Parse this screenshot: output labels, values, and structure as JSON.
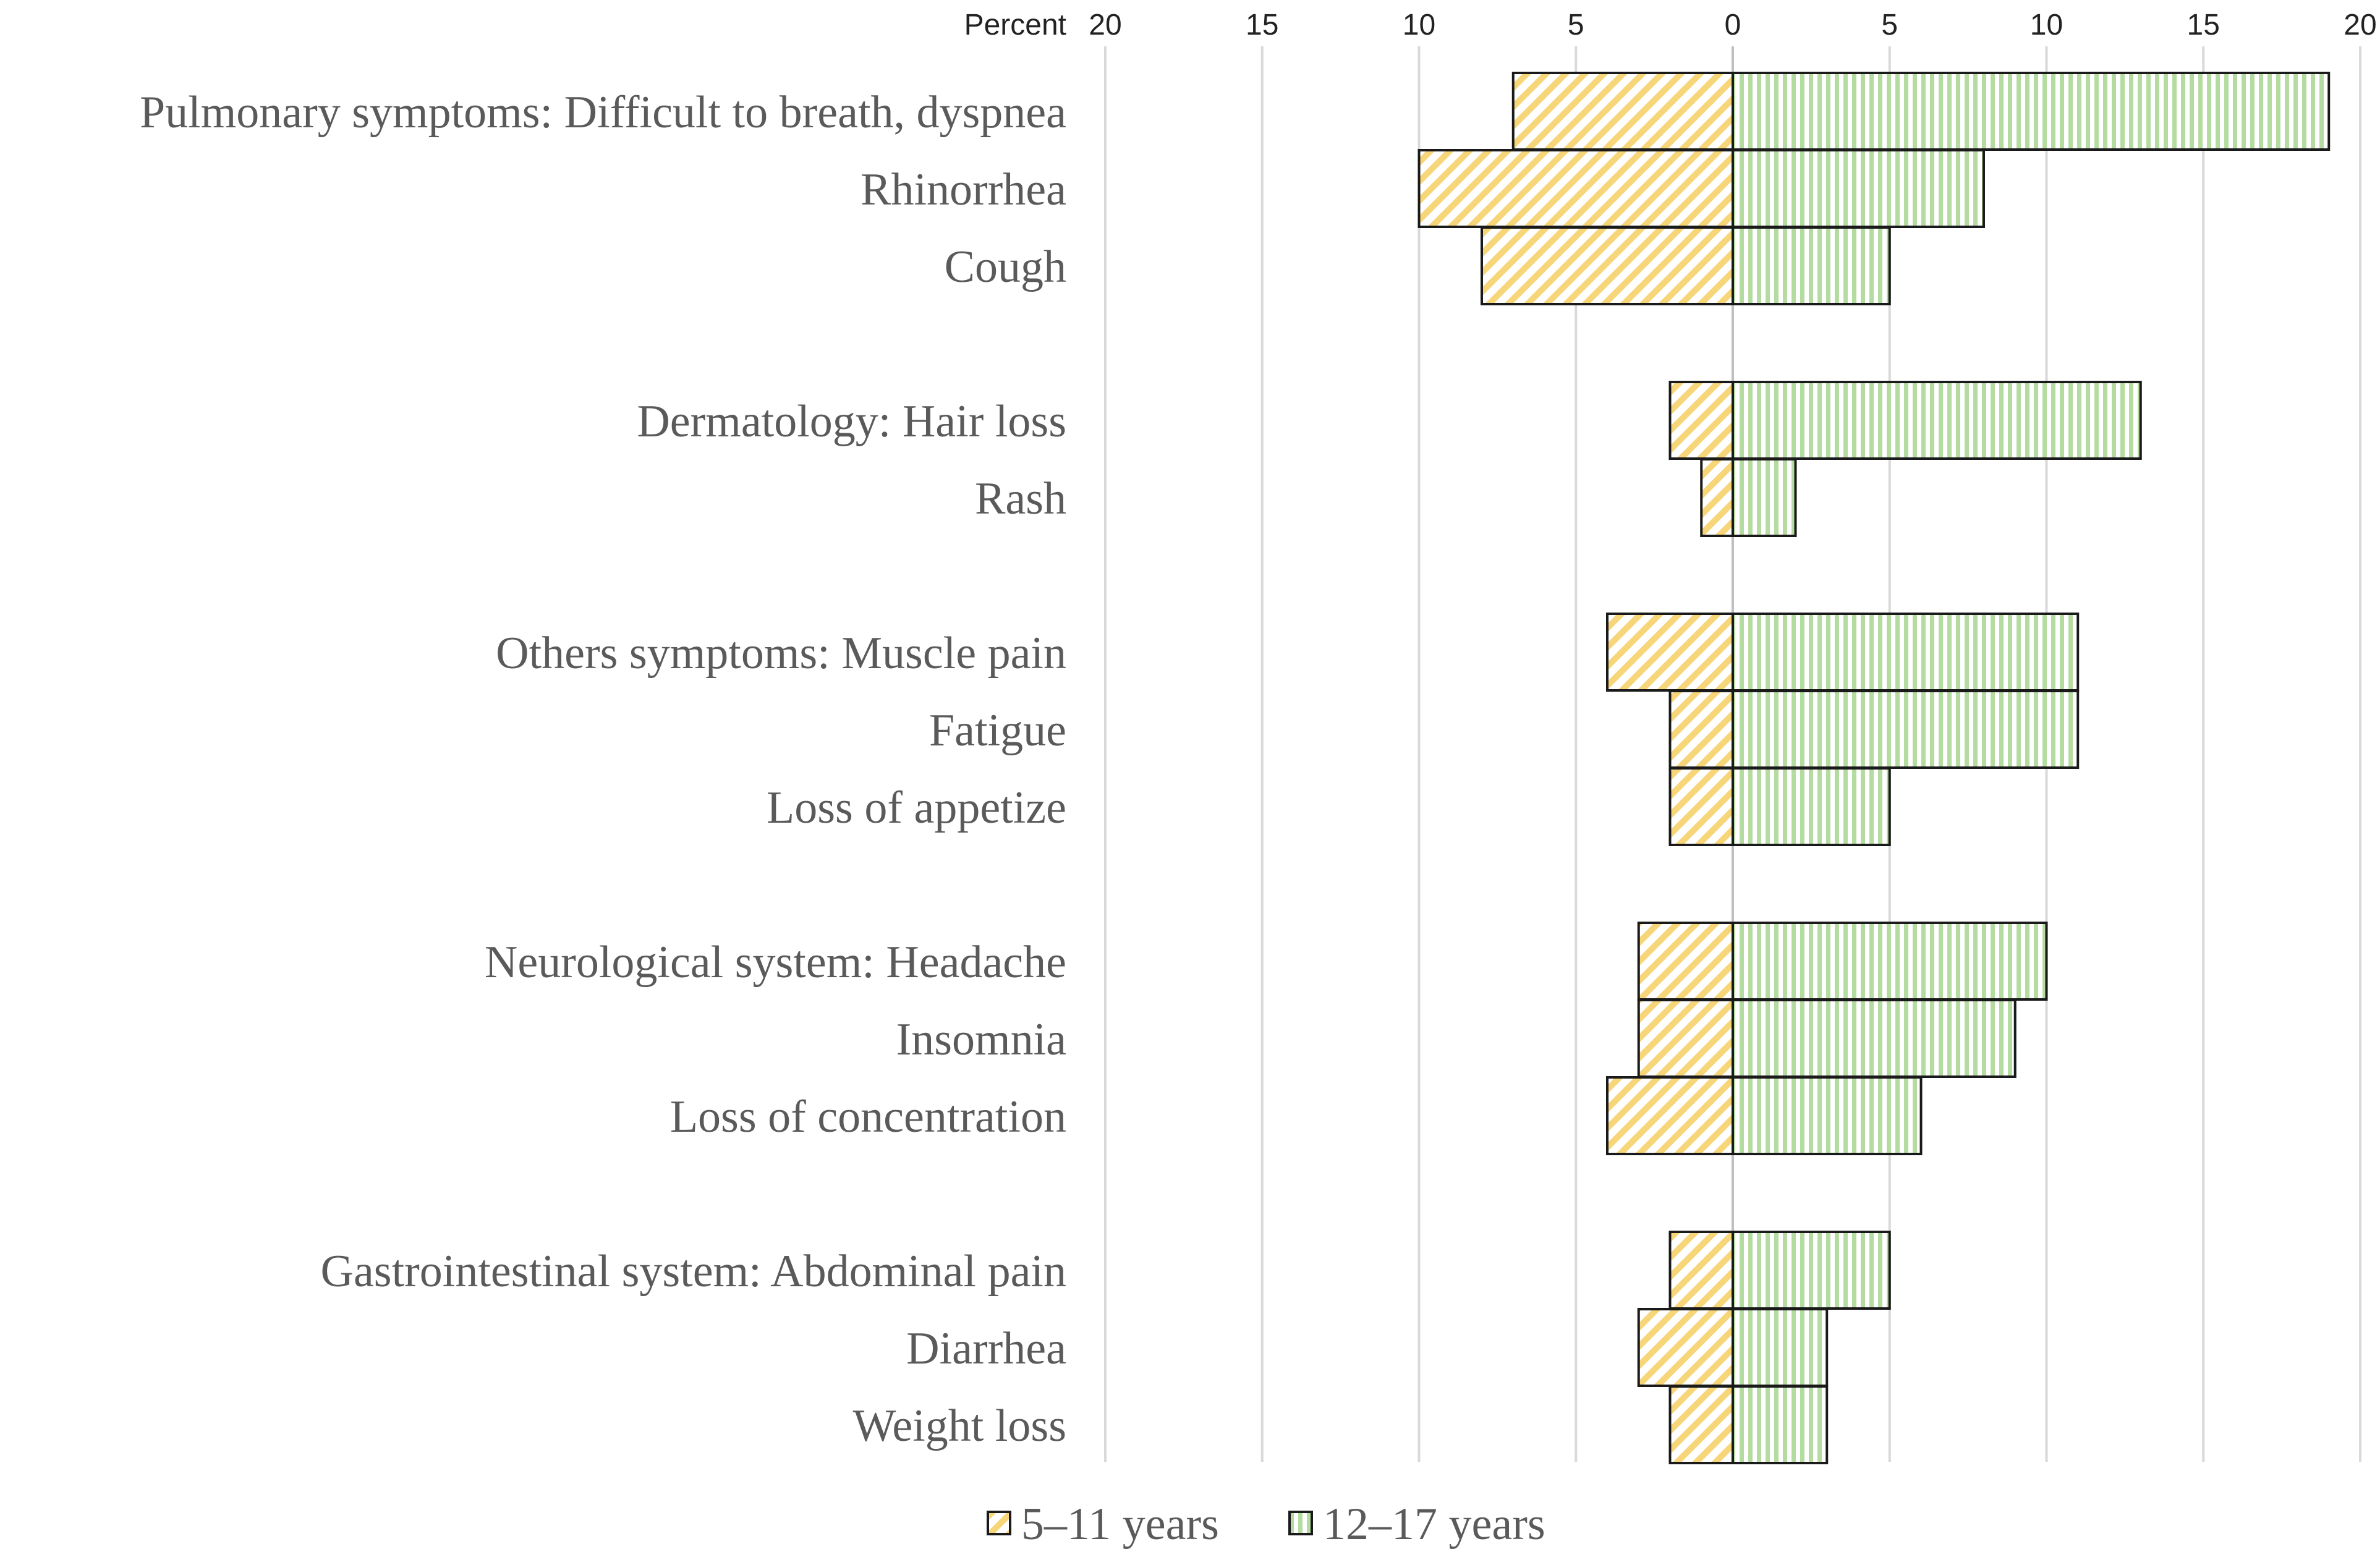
{
  "chart_data": {
    "type": "bar",
    "orientation": "horizontal",
    "layout": "diverging",
    "axis_title": "Percent",
    "ticks": [
      20,
      15,
      10,
      5,
      0,
      5,
      10,
      15,
      20
    ],
    "xlim": [
      -20,
      20
    ],
    "groups": [
      {
        "name": "Pulmonary symptoms",
        "rows": [
          {
            "label": "Pulmonary symptoms: Difficult to breath, dyspnea",
            "values": [
              7,
              19
            ]
          },
          {
            "label": "Rhinorrhea",
            "values": [
              10,
              8
            ]
          },
          {
            "label": "Cough",
            "values": [
              8,
              5
            ]
          }
        ]
      },
      {
        "name": "Dermatology",
        "rows": [
          {
            "label": "Dermatology: Hair loss",
            "values": [
              2,
              13
            ]
          },
          {
            "label": "Rash",
            "values": [
              1,
              2
            ]
          }
        ]
      },
      {
        "name": "Others symptoms",
        "rows": [
          {
            "label": "Others symptoms: Muscle pain",
            "values": [
              4,
              11
            ]
          },
          {
            "label": "Fatigue",
            "values": [
              2,
              11
            ]
          },
          {
            "label": "Loss of appetize",
            "values": [
              2,
              5
            ]
          }
        ]
      },
      {
        "name": "Neurological system",
        "rows": [
          {
            "label": "Neurological system: Headache",
            "values": [
              3,
              10
            ]
          },
          {
            "label": "Insomnia",
            "values": [
              3,
              9
            ]
          },
          {
            "label": "Loss of concentration",
            "values": [
              4,
              6
            ]
          }
        ]
      },
      {
        "name": "Gastrointestinal system",
        "rows": [
          {
            "label": "Gastrointestinal system: Abdominal pain",
            "values": [
              2,
              5
            ]
          },
          {
            "label": "Diarrhea",
            "values": [
              3,
              3
            ]
          },
          {
            "label": "Weight loss",
            "values": [
              2,
              3
            ]
          }
        ]
      }
    ],
    "series": [
      {
        "name": "5–11 years",
        "side": "left",
        "pattern": "diagonal-hatch",
        "color": "#f7d67a"
      },
      {
        "name": "12–17 years",
        "side": "right",
        "pattern": "vertical-hatch",
        "color": "#b5dca0"
      }
    ],
    "legend_position": "bottom-center"
  }
}
